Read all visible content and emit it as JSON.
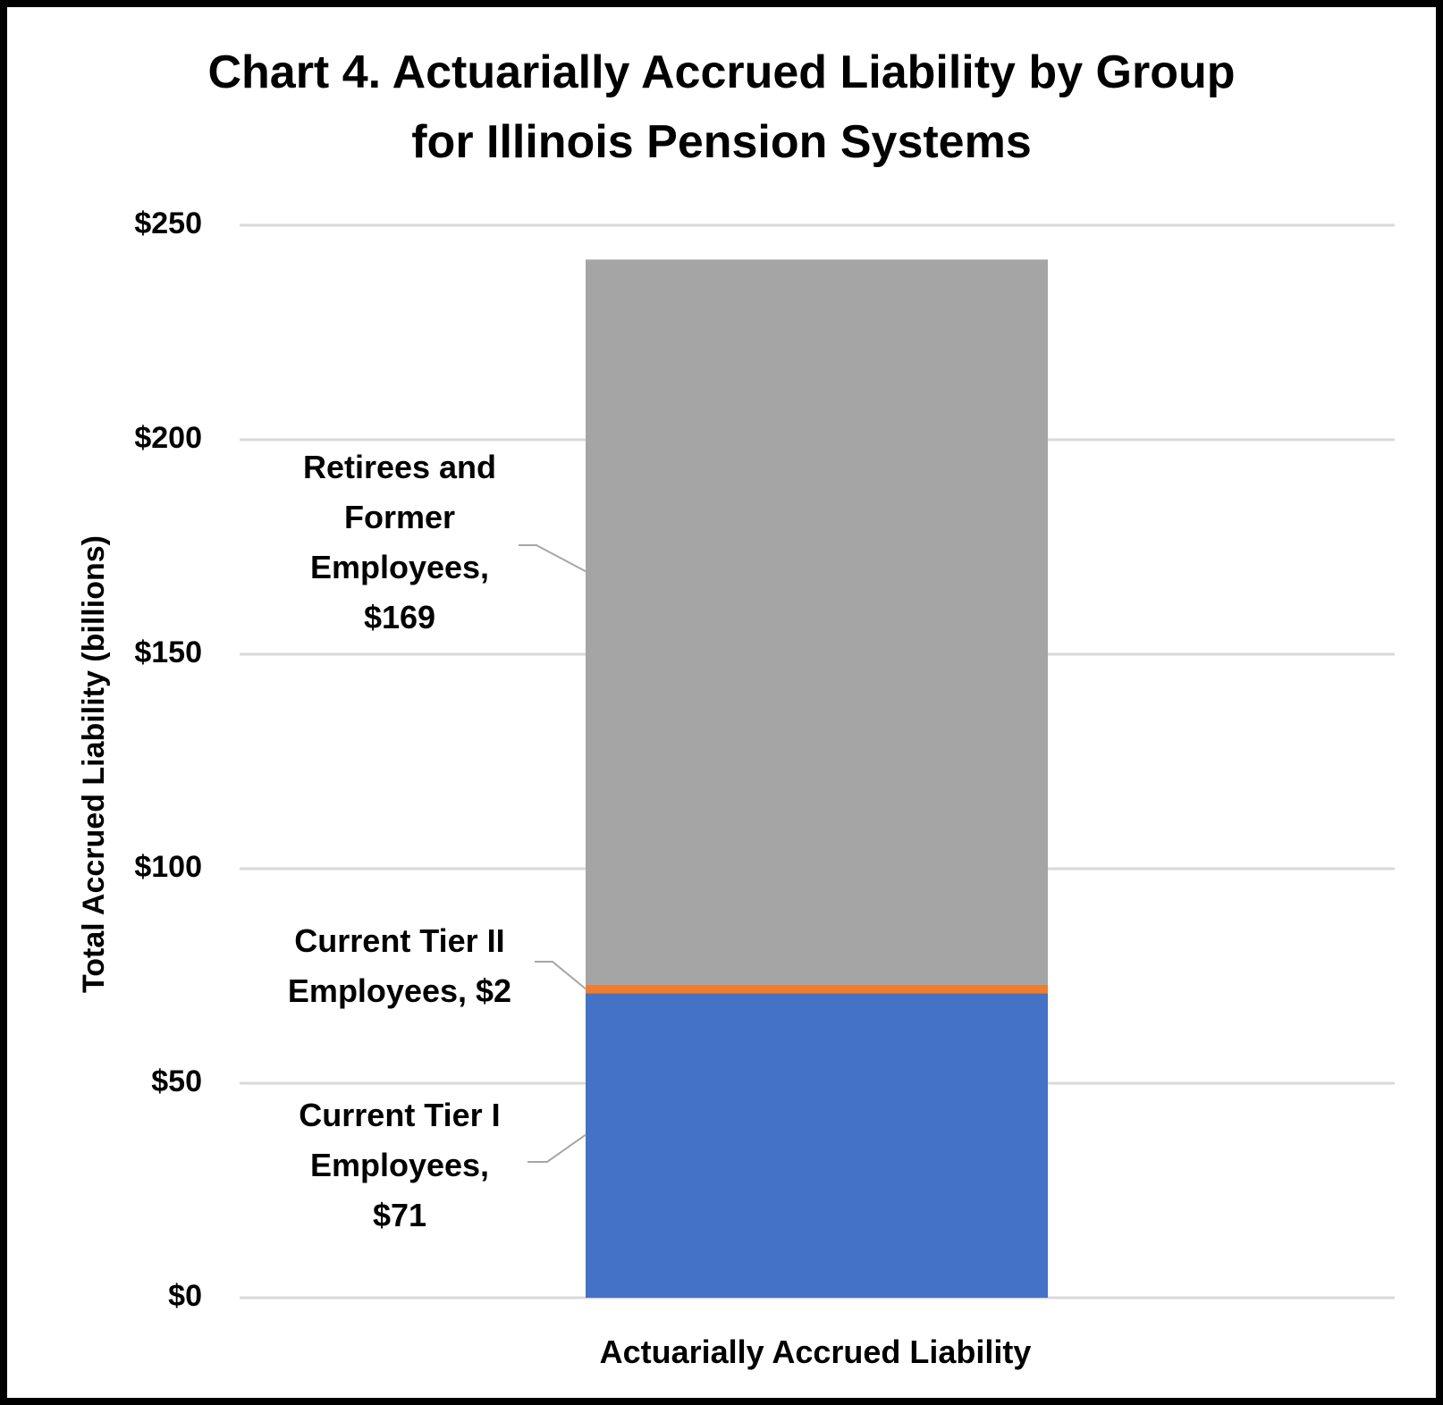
{
  "chart_data": {
    "type": "bar",
    "stacked": true,
    "title": [
      "Chart 4. Actuarially Accrued Liability by Group",
      "for Illinois Pension Systems"
    ],
    "ylabel": "Total Accrued Liability (billions)",
    "xlabel": "",
    "categories": [
      "Actuarially Accrued Liability"
    ],
    "ylim": [
      0,
      250
    ],
    "yticks": [
      0,
      50,
      100,
      150,
      200,
      250
    ],
    "ytick_labels": [
      "$0",
      "$50",
      "$100",
      "$150",
      "$200",
      "$250"
    ],
    "grid": true,
    "legend": "none",
    "series": [
      {
        "name": "Current Tier I Employees",
        "values": [
          71
        ],
        "color": "#4472C4",
        "label_lines": [
          "Current Tier I",
          "Employees,",
          "$71"
        ]
      },
      {
        "name": "Current Tier II Employees",
        "values": [
          2
        ],
        "color": "#ED7D31",
        "label_lines": [
          "Current Tier II",
          "Employees, $2"
        ]
      },
      {
        "name": "Retirees and Former Employees",
        "values": [
          169
        ],
        "color": "#A5A5A5",
        "label_lines": [
          "Retirees and",
          "Former",
          "Employees,",
          "$169"
        ]
      }
    ]
  }
}
